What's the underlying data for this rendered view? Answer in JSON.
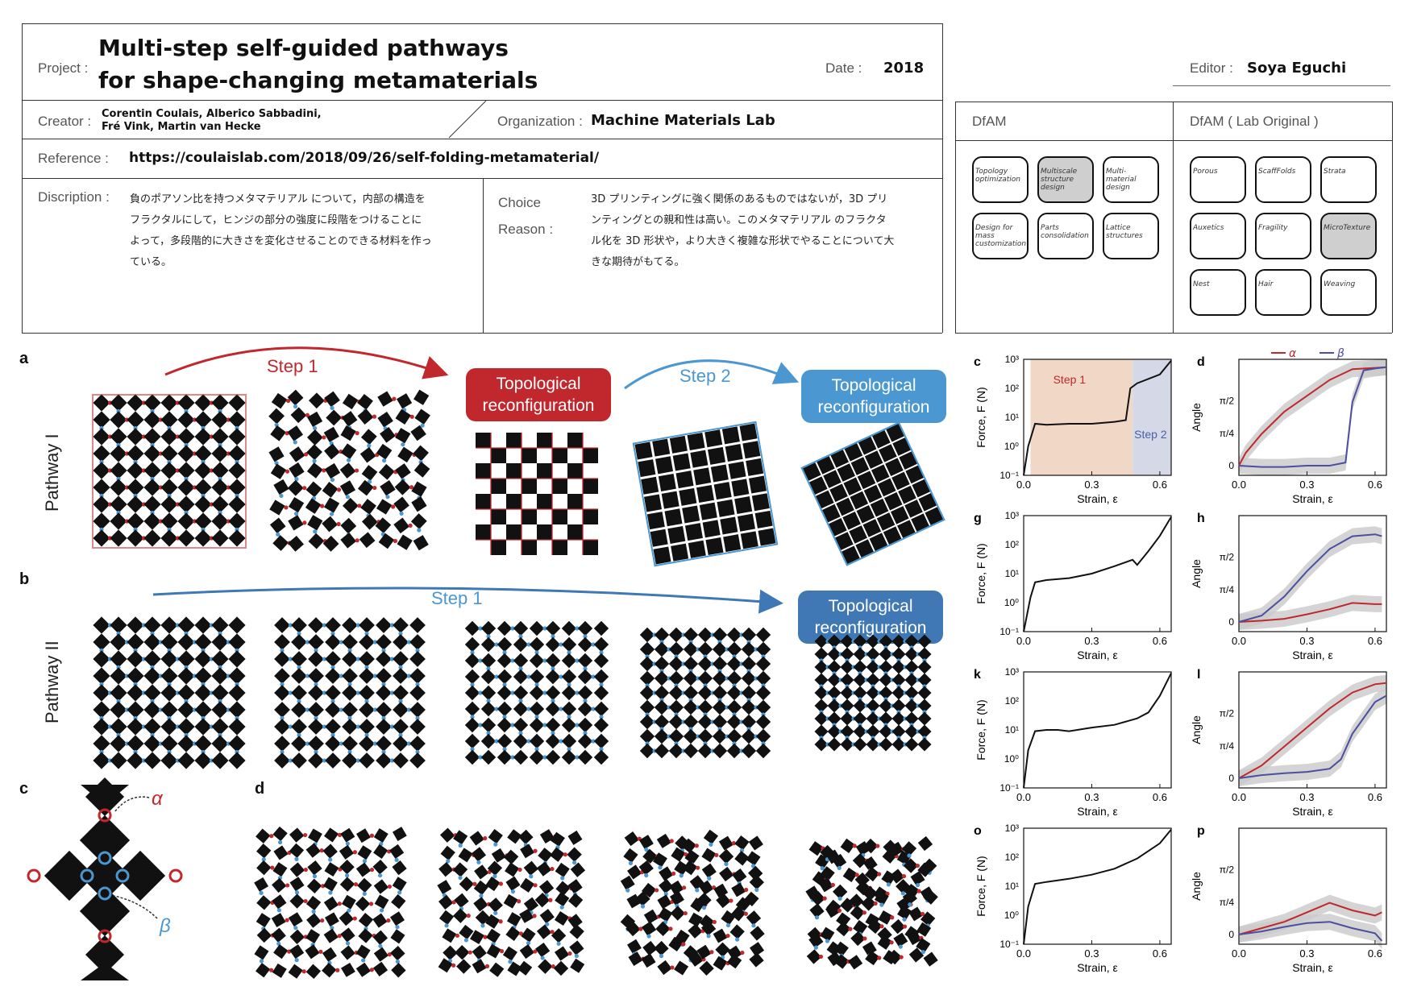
{
  "header": {
    "project_label": "Project :",
    "project_title_line1": "Multi-step self-guided pathways",
    "project_title_line2": "for shape-changing metamaterials",
    "date_label": "Date :",
    "date_value": "2018",
    "editor_label": "Editor :",
    "editor_value": "Soya Eguchi",
    "creator_label": "Creator :",
    "creator_line1": "Corentin Coulais, Alberico Sabbadini,",
    "creator_line2": "Fré Vink, Martin van Hecke",
    "organization_label": "Organization :",
    "organization_value": "Machine Materials Lab",
    "reference_label": "Reference :",
    "reference_value": "https://coulaislab.com/2018/09/26/self-folding-metamaterial/",
    "description_label": "Discription :",
    "description_text": [
      "負のポアソン比を持つメタマテリアル について，内部の構造を",
      "フラクタルにして，ヒンジの部分の強度に段階をつけることに",
      "よって，多段階的に大きさを変化させることのできる材料を作っ",
      "ている。"
    ],
    "choice_label_line1": "Choice",
    "choice_label_line2": "Reason :",
    "choice_text": [
      "3D プリンティングに強く関係のあるものではないが，3D プリ",
      "ンティングとの親和性は高い。このメタマテリアル のフラクタ",
      "ル化を 3D 形状や，より大きく複雑な形状でやることについて大",
      "きな期待がもてる。"
    ]
  },
  "dfam": {
    "title": "DfAM",
    "chips": [
      {
        "label": "Topology optimization",
        "selected": false
      },
      {
        "label": "Multiscale structure design",
        "selected": true
      },
      {
        "label": "Multi-material design",
        "selected": false
      },
      {
        "label": "Design for mass customization",
        "selected": false
      },
      {
        "label": "Parts consolidation",
        "selected": false
      },
      {
        "label": "Lattice structures",
        "selected": false
      }
    ]
  },
  "dfam_lab": {
    "title": "DfAM ( Lab Original )",
    "chips": [
      {
        "label": "Porous",
        "selected": false
      },
      {
        "label": "ScaffFolds",
        "selected": false
      },
      {
        "label": "Strata",
        "selected": false
      },
      {
        "label": "Auxetics",
        "selected": false
      },
      {
        "label": "Fragility",
        "selected": false
      },
      {
        "label": "MicroTexture",
        "selected": true
      },
      {
        "label": "Nest",
        "selected": false
      },
      {
        "label": "Hair",
        "selected": false
      },
      {
        "label": "Weaving",
        "selected": false
      }
    ]
  },
  "figure": {
    "panel_a": "a",
    "panel_b": "b",
    "panel_c": "c",
    "panel_d": "d",
    "pathway1": "Pathway I",
    "pathway2": "Pathway II",
    "step1": "Step 1",
    "step2": "Step 2",
    "topo_line1": "Topological",
    "topo_line2": "reconfiguration",
    "alpha": "α",
    "beta": "β",
    "colors": {
      "red": "#c0282d",
      "blue": "#4a97d1",
      "darkblue": "#3f78b5"
    }
  },
  "chart_data": [
    {
      "type": "line",
      "panel": "c",
      "ylabel": "Force, F (N)",
      "xlabel": "Strain, ε",
      "ylim": [
        0.1,
        1000
      ],
      "xlim": [
        0,
        0.65
      ],
      "log_y": true,
      "x_ticks": [
        "0.0",
        "0.3",
        "0.6"
      ],
      "y_ticks": [
        "10⁻¹",
        "10⁰",
        "10¹",
        "10²",
        "10³"
      ],
      "annotations": [
        "Step 1",
        "Step 2"
      ],
      "series": [
        {
          "x": [
            0.0,
            0.02,
            0.05,
            0.1,
            0.2,
            0.3,
            0.4,
            0.45,
            0.47,
            0.5,
            0.6,
            0.65
          ],
          "y": [
            0.1,
            1.0,
            6,
            5.5,
            6,
            6,
            7,
            8,
            100,
            150,
            300,
            900
          ]
        }
      ]
    },
    {
      "type": "line",
      "panel": "d",
      "ylabel": "Angle",
      "xlabel": "Strain, ε",
      "ylim": [
        0,
        1.7
      ],
      "xlim": [
        0,
        0.65
      ],
      "x_ticks": [
        "0.0",
        "0.3",
        "0.6"
      ],
      "y_ticks": [
        "0",
        "π/4",
        "π/2"
      ],
      "series": [
        {
          "name": "α",
          "x": [
            0.0,
            0.03,
            0.1,
            0.2,
            0.3,
            0.4,
            0.5,
            0.6,
            0.65
          ],
          "y": [
            0,
            0.2,
            0.5,
            0.85,
            1.1,
            1.35,
            1.52,
            1.54,
            1.55
          ]
        },
        {
          "name": "β",
          "x": [
            0.0,
            0.1,
            0.2,
            0.3,
            0.4,
            0.47,
            0.5,
            0.55,
            0.6,
            0.65
          ],
          "y": [
            0,
            -0.02,
            -0.02,
            0.0,
            0.0,
            0.05,
            1.0,
            1.5,
            1.53,
            1.55
          ]
        }
      ]
    },
    {
      "type": "line",
      "panel": "g",
      "ylabel": "Force, F (N)",
      "xlabel": "Strain, ε",
      "ylim": [
        0.1,
        1000
      ],
      "xlim": [
        0,
        0.65
      ],
      "log_y": true,
      "x_ticks": [
        "0.0",
        "0.3",
        "0.6"
      ],
      "y_ticks": [
        "10⁻¹",
        "10⁰",
        "10¹",
        "10²",
        "10³"
      ],
      "series": [
        {
          "x": [
            0.0,
            0.03,
            0.05,
            0.1,
            0.2,
            0.3,
            0.4,
            0.48,
            0.5,
            0.55,
            0.6,
            0.65
          ],
          "y": [
            0.1,
            1.5,
            5,
            6,
            7,
            10,
            18,
            30,
            20,
            60,
            200,
            900
          ]
        }
      ]
    },
    {
      "type": "line",
      "panel": "h",
      "ylabel": "Angle",
      "xlabel": "Strain, ε",
      "ylim": [
        0,
        1.7
      ],
      "xlim": [
        0,
        0.65
      ],
      "x_ticks": [
        "0.0",
        "0.3",
        "0.6"
      ],
      "y_ticks": [
        "0",
        "π/4",
        "π/2"
      ],
      "series": [
        {
          "name": "α",
          "x": [
            0.0,
            0.1,
            0.2,
            0.3,
            0.4,
            0.5,
            0.6,
            0.63
          ],
          "y": [
            0,
            0.02,
            0.05,
            0.12,
            0.2,
            0.3,
            0.28,
            0.28
          ]
        },
        {
          "name": "β",
          "x": [
            0.0,
            0.1,
            0.2,
            0.3,
            0.4,
            0.5,
            0.6,
            0.63
          ],
          "y": [
            0,
            0.1,
            0.4,
            0.8,
            1.15,
            1.35,
            1.38,
            1.35
          ]
        }
      ]
    },
    {
      "type": "line",
      "panel": "k",
      "ylabel": "Force, F (N)",
      "xlabel": "Strain, ε",
      "ylim": [
        0.1,
        1000
      ],
      "xlim": [
        0,
        0.65
      ],
      "log_y": true,
      "x_ticks": [
        "0.0",
        "0.3",
        "0.6"
      ],
      "y_ticks": [
        "10⁻¹",
        "10⁰",
        "10¹",
        "10²",
        "10³"
      ],
      "series": [
        {
          "x": [
            0.0,
            0.02,
            0.05,
            0.1,
            0.15,
            0.2,
            0.3,
            0.4,
            0.5,
            0.55,
            0.6,
            0.65
          ],
          "y": [
            0.1,
            2,
            9,
            10,
            10,
            9,
            12,
            15,
            25,
            40,
            150,
            900
          ]
        }
      ]
    },
    {
      "type": "line",
      "panel": "l",
      "ylabel": "Angle",
      "xlabel": "Strain, ε",
      "ylim": [
        0,
        1.7
      ],
      "xlim": [
        0,
        0.65
      ],
      "x_ticks": [
        "0.0",
        "0.3",
        "0.6"
      ],
      "y_ticks": [
        "0",
        "π/4",
        "π/2"
      ],
      "series": [
        {
          "name": "α",
          "x": [
            0.0,
            0.1,
            0.2,
            0.3,
            0.4,
            0.5,
            0.6,
            0.65
          ],
          "y": [
            0,
            0.2,
            0.5,
            0.8,
            1.1,
            1.35,
            1.48,
            1.5
          ]
        },
        {
          "name": "β",
          "x": [
            0.0,
            0.1,
            0.2,
            0.3,
            0.4,
            0.45,
            0.5,
            0.6,
            0.65
          ],
          "y": [
            0,
            0.05,
            0.08,
            0.1,
            0.15,
            0.3,
            0.7,
            1.2,
            1.3
          ]
        }
      ]
    },
    {
      "type": "line",
      "panel": "o",
      "ylabel": "Force, F (N)",
      "xlabel": "Strain, ε",
      "ylim": [
        0.1,
        1000
      ],
      "xlim": [
        0,
        0.65
      ],
      "log_y": true,
      "x_ticks": [
        "0.0",
        "0.3",
        "0.6"
      ],
      "y_ticks": [
        "10⁻¹",
        "10⁰",
        "10¹",
        "10²",
        "10³"
      ],
      "series": [
        {
          "x": [
            0.0,
            0.02,
            0.05,
            0.1,
            0.2,
            0.3,
            0.4,
            0.5,
            0.6,
            0.65
          ],
          "y": [
            0.1,
            2,
            12,
            14,
            18,
            25,
            40,
            90,
            300,
            900
          ]
        }
      ]
    },
    {
      "type": "line",
      "panel": "p",
      "ylabel": "Angle",
      "xlabel": "Strain, ε",
      "ylim": [
        0,
        1.7
      ],
      "xlim": [
        0,
        0.65
      ],
      "x_ticks": [
        "0.0",
        "0.3",
        "0.6"
      ],
      "y_ticks": [
        "0",
        "π/4",
        "π/2"
      ],
      "series": [
        {
          "name": "α",
          "x": [
            0.0,
            0.1,
            0.2,
            0.3,
            0.4,
            0.5,
            0.6,
            0.63
          ],
          "y": [
            0,
            0.1,
            0.2,
            0.35,
            0.5,
            0.38,
            0.3,
            0.35
          ]
        },
        {
          "name": "β",
          "x": [
            0.0,
            0.1,
            0.2,
            0.3,
            0.4,
            0.5,
            0.6,
            0.63
          ],
          "y": [
            0,
            0.05,
            0.12,
            0.18,
            0.2,
            0.1,
            0.02,
            -0.1
          ]
        }
      ]
    }
  ]
}
